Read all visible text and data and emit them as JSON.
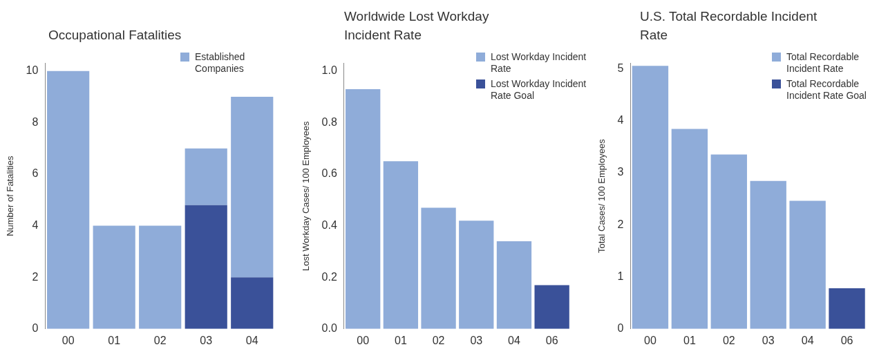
{
  "chart_data": [
    {
      "type": "bar",
      "title": "Occupational Fatalities",
      "ylabel": "Number of Fatalities",
      "categories": [
        "00",
        "01",
        "02",
        "03",
        "04"
      ],
      "stacked": true,
      "series": [
        {
          "color": "#3a5199",
          "values": [
            null,
            null,
            null,
            4.8,
            2
          ]
        },
        {
          "name": "Established Companies",
          "color": "#8facd9",
          "values": [
            10,
            4,
            4,
            2.2,
            7
          ]
        }
      ],
      "ylim": [
        0,
        10.3
      ],
      "yticks": [
        0,
        2,
        4,
        6,
        8,
        10
      ],
      "legend": "top right"
    },
    {
      "type": "bar",
      "title": "Worldwide Lost Workday Incident Rate",
      "ylabel": "Lost Workday Cases/ 100 Employees",
      "categories": [
        "00",
        "01",
        "02",
        "03",
        "04",
        "06"
      ],
      "series": [
        {
          "name": "Lost Workday Incident Rate",
          "color": "#8facd9",
          "values": [
            0.93,
            0.65,
            0.47,
            0.42,
            0.34,
            null
          ]
        },
        {
          "name": "Lost Workday Incident Rate Goal",
          "color": "#3a5199",
          "values": [
            null,
            null,
            null,
            null,
            null,
            0.17
          ]
        }
      ],
      "ylim": [
        0,
        1.03
      ],
      "yticks": [
        {
          "value": 0,
          "label": "0.0"
        },
        0.2,
        0.4,
        0.6,
        0.8,
        {
          "value": 1,
          "label": "1.0"
        }
      ],
      "legend": "top right"
    },
    {
      "type": "bar",
      "title": "U.S. Total Recordable Incident Rate",
      "ylabel": "Total Cases/ 100 Employees",
      "categories": [
        "00",
        "01",
        "02",
        "03",
        "04",
        "06"
      ],
      "series": [
        {
          "name": "Total Recordable Incident Rate",
          "color": "#8facd9",
          "values": [
            5.05,
            3.84,
            3.35,
            2.84,
            2.46,
            null
          ]
        },
        {
          "name": "Total Recordable Incident Rate Goal",
          "color": "#3a5199",
          "values": [
            null,
            null,
            null,
            null,
            null,
            0.78
          ]
        }
      ],
      "ylim": [
        0,
        5.1
      ],
      "yticks": [
        0,
        1,
        2,
        3,
        4,
        5
      ],
      "legend": "top right"
    }
  ]
}
